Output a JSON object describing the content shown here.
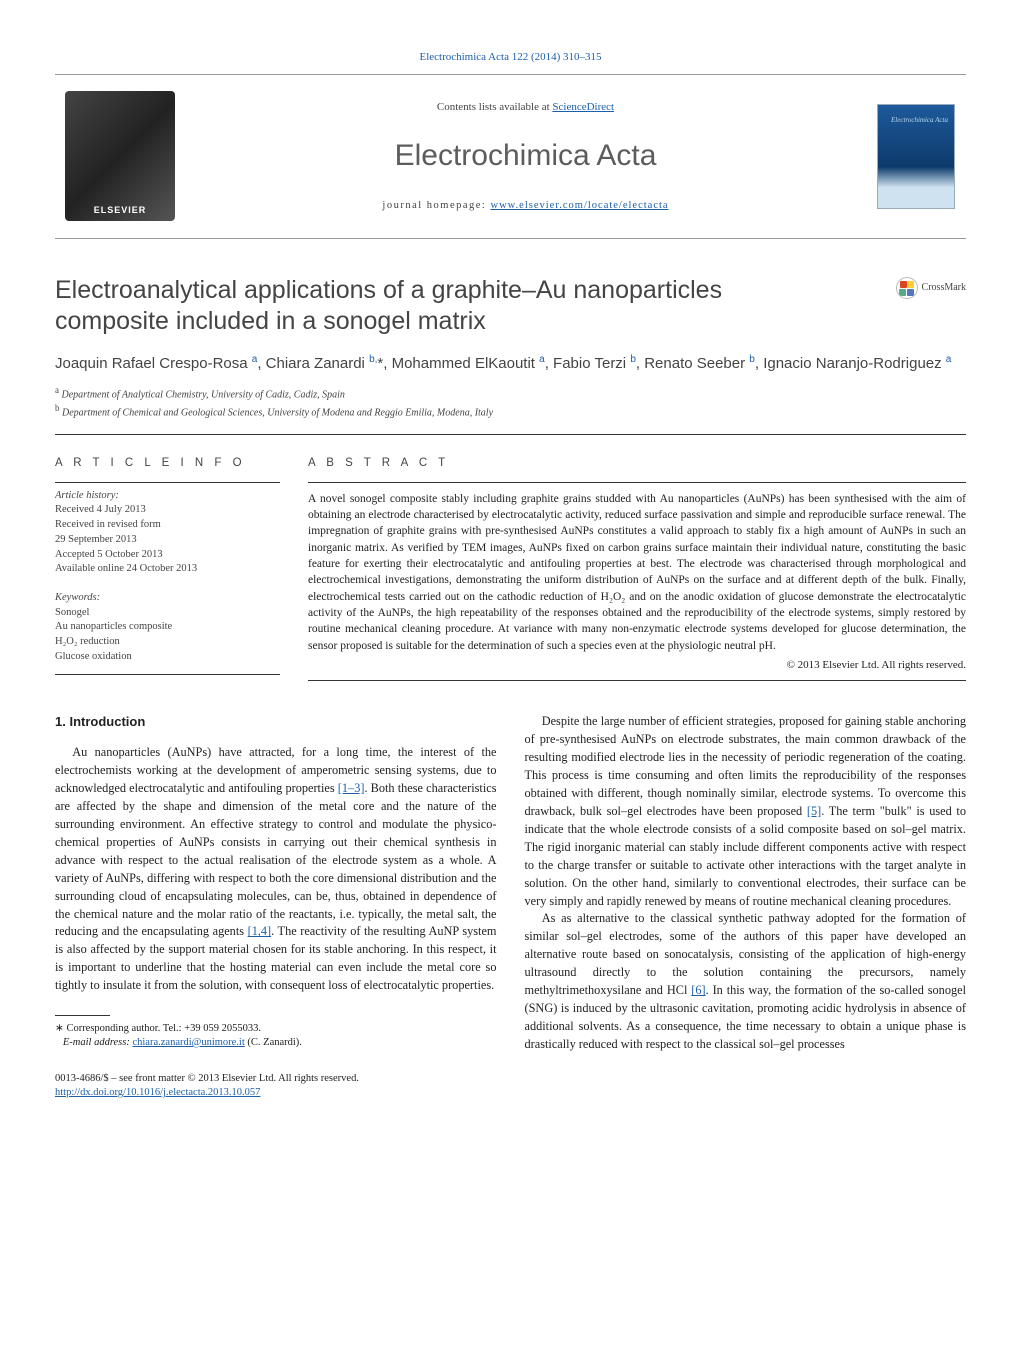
{
  "top_link": "Electrochimica Acta 122 (2014) 310–315",
  "banner": {
    "contents_prefix": "Contents lists available at ",
    "contents_link": "ScienceDirect",
    "journal_title": "Electrochimica Acta",
    "homepage_prefix": "journal homepage: ",
    "homepage_url": "www.elsevier.com/locate/electacta",
    "publisher_label": "ELSEVIER",
    "cover_title": "Electrochimica\nActa"
  },
  "crossmark_label": "CrossMark",
  "title": "Electroanalytical applications of a graphite–Au nanoparticles composite included in a sonogel matrix",
  "authors_html": "Joaquin Rafael Crespo-Rosa <sup>a</sup>, Chiara Zanardi <sup>b,</sup>*, Mohammed ElKaoutit <sup>a</sup>, Fabio Terzi <sup>b</sup>, Renato Seeber <sup>b</sup>, Ignacio Naranjo-Rodriguez <sup>a</sup>",
  "affiliations": [
    {
      "sup": "a",
      "text": "Department of Analytical Chemistry, University of Cadiz, Cadiz, Spain"
    },
    {
      "sup": "b",
      "text": "Department of Chemical and Geological Sciences, University of Modena and Reggio Emilia, Modena, Italy"
    }
  ],
  "info_label": "A R T I C L E   I N F O",
  "history": {
    "heading": "Article history:",
    "lines": [
      "Received 4 July 2013",
      "Received in revised form",
      "29 September 2013",
      "Accepted 5 October 2013",
      "Available online 24 October 2013"
    ]
  },
  "keywords": {
    "heading": "Keywords:",
    "items": [
      "Sonogel",
      "Au nanoparticles composite",
      "H₂O₂ reduction",
      "Glucose oxidation"
    ]
  },
  "abstract_label": "A B S T R A C T",
  "abstract_text": "A novel sonogel composite stably including graphite grains studded with Au nanoparticles (AuNPs) has been synthesised with the aim of obtaining an electrode characterised by electrocatalytic activity, reduced surface passivation and simple and reproducible surface renewal. The impregnation of graphite grains with pre-synthesised AuNPs constitutes a valid approach to stably fix a high amount of AuNPs in such an inorganic matrix. As verified by TEM images, AuNPs fixed on carbon grains surface maintain their individual nature, constituting the basic feature for exerting their electrocatalytic and antifouling properties at best. The electrode was characterised through morphological and electrochemical investigations, demonstrating the uniform distribution of AuNPs on the surface and at different depth of the bulk. Finally, electrochemical tests carried out on the cathodic reduction of H₂O₂ and on the anodic oxidation of glucose demonstrate the electrocatalytic activity of the AuNPs, the high repeatability of the responses obtained and the reproducibility of the electrode systems, simply restored by routine mechanical cleaning procedure. At variance with many non-enzymatic electrode systems developed for glucose determination, the sensor proposed is suitable for the determination of such a species even at the physiologic neutral pH.",
  "copyright": "© 2013 Elsevier Ltd. All rights reserved.",
  "intro_heading": "1. Introduction",
  "para1_a": "Au nanoparticles (AuNPs) have attracted, for a long time, the interest of the electrochemists working at the development of amperometric sensing systems, due to acknowledged electrocatalytic and antifouling properties ",
  "ref1": "[1–3]",
  "para1_b": ". Both these characteristics are affected by the shape and dimension of the metal core and the nature of the surrounding environment. An effective strategy to control and modulate the physico-chemical properties of AuNPs consists in carrying out their chemical synthesis in advance with respect to the actual realisation of the electrode system as a whole. A variety of AuNPs, differing with respect to both the core dimensional distribution and the surrounding cloud of encapsulating molecules, can be, thus, obtained in dependence of the chemical nature and the molar ratio of the reactants, i.e. typically, the metal salt, the reducing and the encapsulating agents ",
  "ref2": "[1,4]",
  "para1_c": ". The reactivity of the resulting AuNP system is also affected by the support material chosen for its stable anchoring. In this respect, it is important to underline that the hosting material can even include the metal core so tightly to insulate it from the solution, with consequent loss of electrocatalytic properties.",
  "para2_a": "Despite the large number of efficient strategies, proposed for gaining stable anchoring of pre-synthesised AuNPs on electrode substrates, the main common drawback of the resulting modified electrode lies in the necessity of periodic regeneration of the coating. This process is time consuming and often limits the reproducibility of the responses obtained with different, though nominally similar, electrode systems. To overcome this drawback, bulk sol–gel electrodes have been proposed ",
  "ref3": "[5]",
  "para2_b": ". The term \"bulk\" is used to indicate that the whole electrode consists of a solid composite based on sol–gel matrix. The rigid inorganic material can stably include different components active with respect to the charge transfer or suitable to activate other interactions with the target analyte in solution. On the other hand, similarly to conventional electrodes, their surface can be very simply and rapidly renewed by means of routine mechanical cleaning procedures.",
  "para3_a": "As as alternative to the classical synthetic pathway adopted for the formation of similar sol–gel electrodes, some of the authors of this paper have developed an alternative route based on sonocatalysis, consisting of the application of high-energy ultrasound directly to the solution containing the precursors, namely methyltrimethoxysilane and HCl ",
  "ref4": "[6]",
  "para3_b": ". In this way, the formation of the so-called sonogel (SNG) is induced by the ultrasonic cavitation, promoting acidic hydrolysis in absence of additional solvents. As a consequence, the time necessary to obtain a unique phase is drastically reduced with respect to the classical sol–gel processes",
  "footnote": {
    "star": "∗",
    "line1": "Corresponding author. Tel.: +39 059 2055033.",
    "email_label": "E-mail address: ",
    "email": "chiara.zanardi@unimore.it",
    "email_suffix": " (C. Zanardi)."
  },
  "footer": {
    "issn_line": "0013-4686/$ – see front matter © 2013 Elsevier Ltd. All rights reserved.",
    "doi": "http://dx.doi.org/10.1016/j.electacta.2013.10.057"
  },
  "colors": {
    "link": "#1b5faa",
    "text": "#222222",
    "muted": "#5c5c5c"
  }
}
